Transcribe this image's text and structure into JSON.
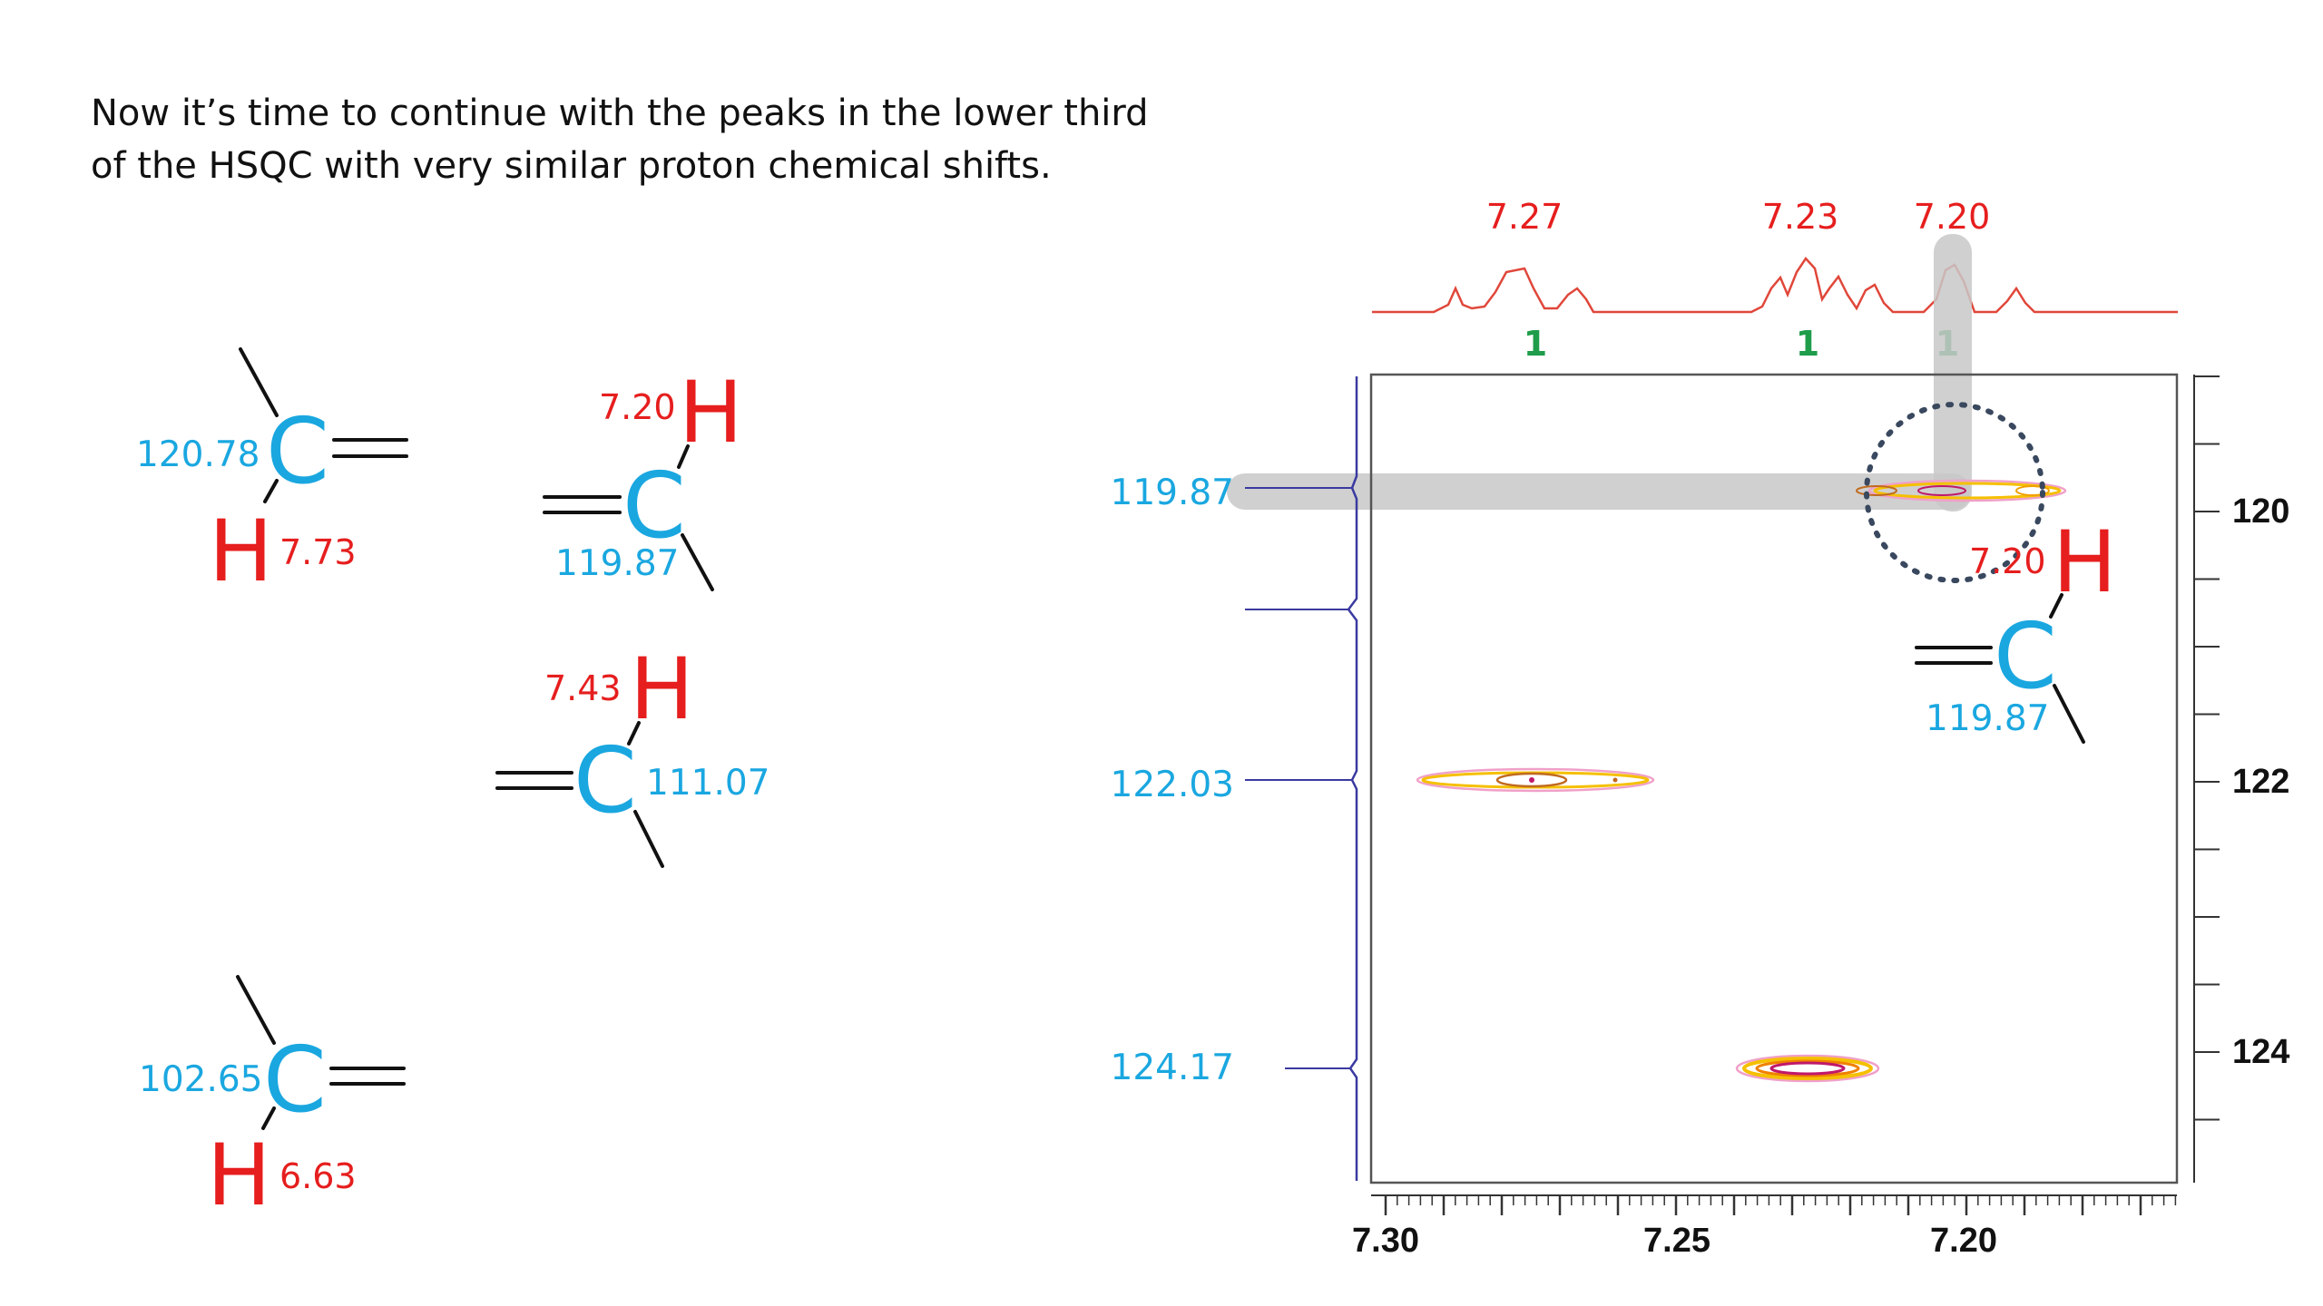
{
  "intro": {
    "line1": "Now it’s time to continue with the peaks in the lower third",
    "line2": "of the HSQC with very similar proton chemical shifts."
  },
  "fragments": [
    {
      "id": "frag-1",
      "carbon_label": "C",
      "hydrogen_label": "H",
      "carbon_shift": "120.78",
      "proton_shift": "7.73"
    },
    {
      "id": "frag-2",
      "carbon_label": "C",
      "hydrogen_label": "H",
      "carbon_shift": "119.87",
      "proton_shift": "7.20"
    },
    {
      "id": "frag-3",
      "carbon_label": "C",
      "hydrogen_label": "H",
      "carbon_shift": "111.07",
      "proton_shift": "7.43"
    },
    {
      "id": "frag-4",
      "carbon_label": "C",
      "hydrogen_label": "H",
      "carbon_shift": "102.65",
      "proton_shift": "6.63"
    }
  ],
  "hsqc": {
    "top_peak_labels": [
      "7.27",
      "7.23",
      "7.20"
    ],
    "integrals": [
      "1",
      "1",
      "1"
    ],
    "carbon_peak_labels": [
      "119.87",
      "122.03",
      "124.17"
    ],
    "x_tick_labels": [
      "7.30",
      "7.25",
      "7.20"
    ],
    "y_tick_labels": [
      "120",
      "122",
      "124"
    ],
    "inset_fragment": {
      "carbon_label": "C",
      "hydrogen_label": "H",
      "carbon_shift": "119.87",
      "proton_shift": "7.20"
    },
    "colors": {
      "proton_trace": "#e0473a",
      "carbon_trace": "#3a3aa0",
      "contour_outer": "#f0a0c8",
      "contour_mid": "#f5c000",
      "contour_inner": "#c0186a",
      "highlight": "#c8c8c8",
      "circle": "#39485e"
    }
  }
}
